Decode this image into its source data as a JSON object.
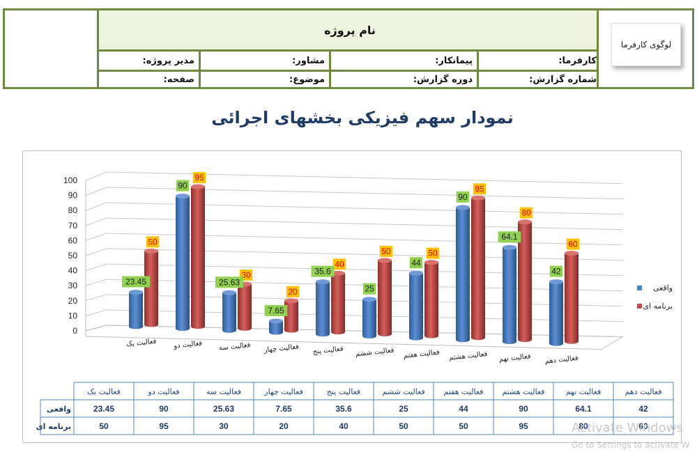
{
  "header": {
    "project_name": "نام پروژه",
    "logo_text": "لوگوی کارفرما",
    "row1": [
      "کارفرما:",
      "پیمانکار:",
      "مشاور:",
      "مدیر پروژه:"
    ],
    "row2": [
      "شماره گزارش:",
      "دوره گزارش:",
      "موضوع:",
      "صفحه:"
    ]
  },
  "chart_data": {
    "type": "bar",
    "title": "نمودار سهم فیزیکی بخشهای اجرائی",
    "categories": [
      "فعالیت  یک",
      "فعالیت دو",
      "فعالیت سه",
      "فعالیت چهار",
      "فعالیت پنج",
      "فعالیت ششم",
      "فعالیت هفتم",
      "فعالیت هشتم",
      "فعالیت نهم",
      "فعالیت دهم"
    ],
    "series": [
      {
        "name": "واقعی",
        "values": [
          23.45,
          90,
          25.63,
          7.65,
          35.6,
          25,
          44,
          90,
          64.1,
          42
        ],
        "color": "#4f81bd",
        "label_bg": "#92d050",
        "label_color": "#1a1a1a"
      },
      {
        "name": "برنامه ای",
        "values": [
          50,
          95,
          30,
          20,
          40,
          50,
          50,
          95,
          80,
          60
        ],
        "color": "#c0504d",
        "label_bg": "#ffc000",
        "label_color": "#e00000"
      }
    ],
    "ylim": [
      0,
      100
    ],
    "yticks": [
      0,
      10,
      20,
      30,
      40,
      50,
      60,
      70,
      80,
      90,
      100
    ],
    "grid": true,
    "legend": "right",
    "table": {
      "row_labels": [
        "واقعی",
        "برنامه ای"
      ],
      "series_values": [
        [
          "23.45",
          "90",
          "25.63",
          "7.65",
          "35.6",
          "25",
          "44",
          "90",
          "64.1",
          "42"
        ],
        [
          "50",
          "95",
          "30",
          "20",
          "40",
          "50",
          "50",
          "95",
          "80",
          "60"
        ]
      ]
    }
  },
  "watermark": {
    "line1": "Activate Windows",
    "line2": "Go to Settings to activate W"
  }
}
